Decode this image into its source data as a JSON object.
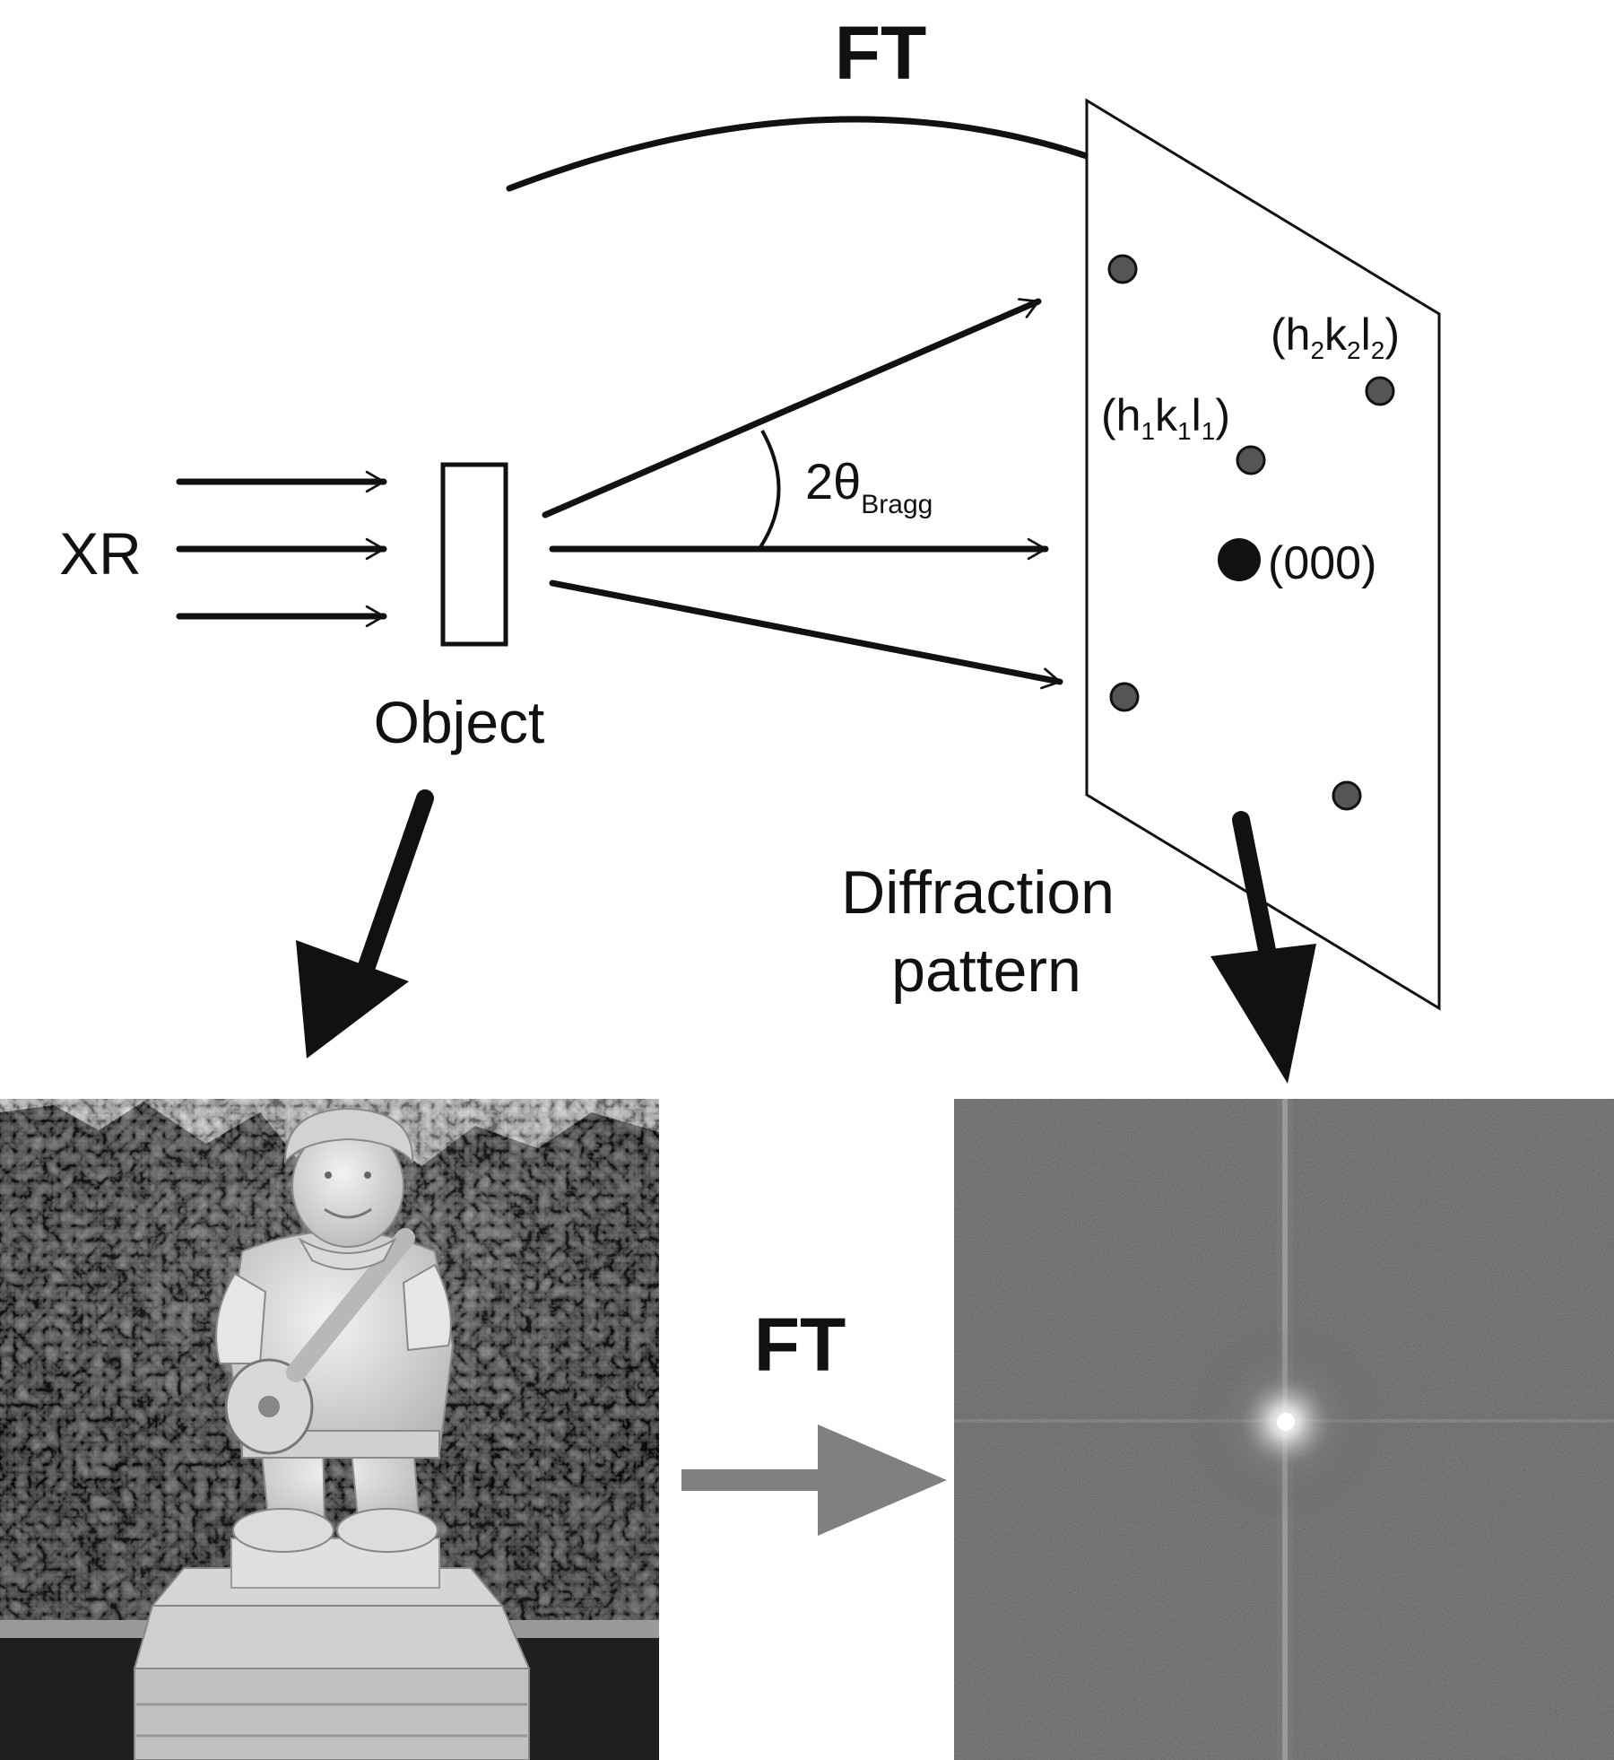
{
  "labels": {
    "ft_top": "FT",
    "xr": "XR",
    "object": "Object",
    "two_theta": "2θ",
    "bragg_sub": "Bragg",
    "hkl1_h": "(h",
    "hkl1_h_sub": "1",
    "hkl1_k": "k",
    "hkl1_k_sub": "1",
    "hkl1_l": "l",
    "hkl1_l_sub": "1",
    "hkl1_close": ")",
    "hkl2_h": "(h",
    "hkl2_h_sub": "2",
    "hkl2_k": "k",
    "hkl2_k_sub": "2",
    "hkl2_l": "l",
    "hkl2_l_sub": "2",
    "hkl2_close": ")",
    "origin": "(000)",
    "diffraction_line1": "Diffraction",
    "diffraction_line2": "pattern",
    "ft_bottom": "FT"
  },
  "colors": {
    "ink": "#111111",
    "spot": "#555555",
    "origin_spot": "#111111",
    "ft_arrow": "#808080",
    "fft_background": "#1c1c1c"
  }
}
